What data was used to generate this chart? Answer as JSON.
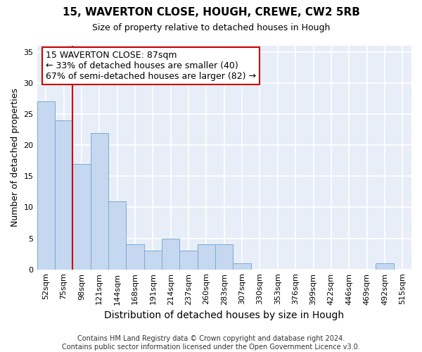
{
  "title1": "15, WAVERTON CLOSE, HOUGH, CREWE, CW2 5RB",
  "title2": "Size of property relative to detached houses in Hough",
  "xlabel": "Distribution of detached houses by size in Hough",
  "ylabel": "Number of detached properties",
  "categories": [
    "52sqm",
    "75sqm",
    "98sqm",
    "121sqm",
    "144sqm",
    "168sqm",
    "191sqm",
    "214sqm",
    "237sqm",
    "260sqm",
    "283sqm",
    "307sqm",
    "330sqm",
    "353sqm",
    "376sqm",
    "399sqm",
    "422sqm",
    "446sqm",
    "469sqm",
    "492sqm",
    "515sqm"
  ],
  "values": [
    27,
    24,
    17,
    22,
    11,
    4,
    3,
    5,
    3,
    4,
    4,
    1,
    0,
    0,
    0,
    0,
    0,
    0,
    0,
    1,
    0
  ],
  "bar_color": "#c5d8f0",
  "bar_edge_color": "#7aaad4",
  "highlight_line_index": 1,
  "highlight_color": "#cc0000",
  "annotation_text_line1": "15 WAVERTON CLOSE: 87sqm",
  "annotation_text_line2": "← 33% of detached houses are smaller (40)",
  "annotation_text_line3": "67% of semi-detached houses are larger (82) →",
  "ylim": [
    0,
    36
  ],
  "yticks": [
    0,
    5,
    10,
    15,
    20,
    25,
    30,
    35
  ],
  "bg_color": "#e8eef8",
  "grid_color": "#ffffff",
  "footer_line1": "Contains HM Land Registry data © Crown copyright and database right 2024.",
  "footer_line2": "Contains public sector information licensed under the Open Government Licence v3.0.",
  "title1_fontsize": 11,
  "title2_fontsize": 9,
  "ylabel_fontsize": 9,
  "xlabel_fontsize": 10,
  "tick_fontsize": 8,
  "annotation_fontsize": 9,
  "footer_fontsize": 7
}
